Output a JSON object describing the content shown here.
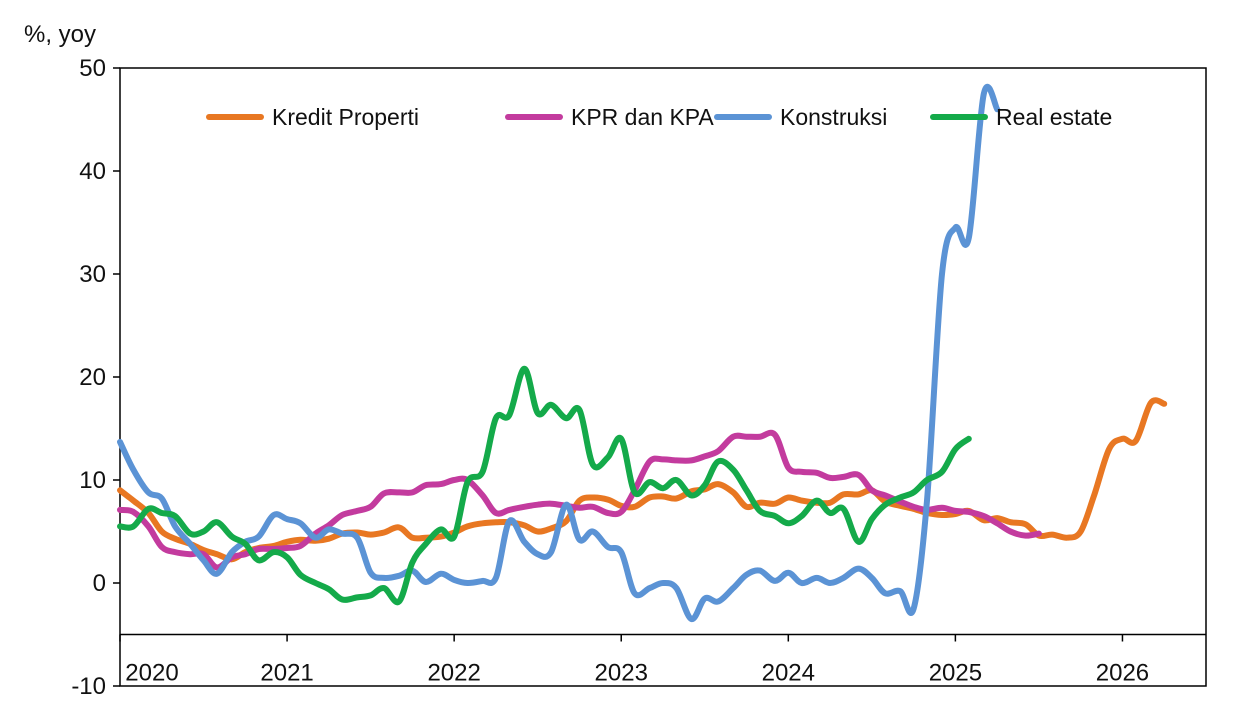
{
  "chart_data": {
    "type": "line",
    "ylabel": "%, yoy",
    "ylim": [
      -10,
      50
    ],
    "xlim": [
      2020,
      2026.5
    ],
    "yticks": [
      -10,
      0,
      10,
      20,
      30,
      40,
      50
    ],
    "yticklabels": [
      "-10",
      "0",
      "10",
      "20",
      "30",
      "40",
      "50"
    ],
    "xticks": [
      2020,
      2021,
      2022,
      2023,
      2024,
      2025,
      2026
    ],
    "xticklabels": [
      "2020",
      "2021",
      "2022",
      "2023",
      "2024",
      "2025",
      "2026"
    ],
    "x_axis_crosses_at": -5,
    "grid": false,
    "legend": "top",
    "series": [
      {
        "name": "Kredit Properti",
        "color": "#E87722",
        "points": [
          [
            2020.0,
            9.0
          ],
          [
            2020.08,
            8.0
          ],
          [
            2020.17,
            6.8
          ],
          [
            2020.25,
            5.0
          ],
          [
            2020.33,
            4.3
          ],
          [
            2020.42,
            3.8
          ],
          [
            2020.5,
            3.2
          ],
          [
            2020.58,
            2.8
          ],
          [
            2020.67,
            2.3
          ],
          [
            2020.75,
            3.0
          ],
          [
            2020.83,
            3.4
          ],
          [
            2020.92,
            3.6
          ],
          [
            2021.0,
            4.0
          ],
          [
            2021.08,
            4.2
          ],
          [
            2021.17,
            4.1
          ],
          [
            2021.25,
            4.3
          ],
          [
            2021.33,
            4.8
          ],
          [
            2021.42,
            4.9
          ],
          [
            2021.5,
            4.7
          ],
          [
            2021.58,
            4.9
          ],
          [
            2021.67,
            5.4
          ],
          [
            2021.75,
            4.4
          ],
          [
            2021.83,
            4.4
          ],
          [
            2021.92,
            4.5
          ],
          [
            2022.0,
            4.9
          ],
          [
            2022.08,
            5.5
          ],
          [
            2022.17,
            5.8
          ],
          [
            2022.25,
            5.9
          ],
          [
            2022.33,
            5.9
          ],
          [
            2022.42,
            5.6
          ],
          [
            2022.5,
            5.0
          ],
          [
            2022.58,
            5.3
          ],
          [
            2022.67,
            6.0
          ],
          [
            2022.75,
            8.0
          ],
          [
            2022.83,
            8.3
          ],
          [
            2022.92,
            8.1
          ],
          [
            2023.0,
            7.5
          ],
          [
            2023.08,
            7.4
          ],
          [
            2023.17,
            8.3
          ],
          [
            2023.25,
            8.4
          ],
          [
            2023.33,
            8.2
          ],
          [
            2023.42,
            8.9
          ],
          [
            2023.5,
            9.1
          ],
          [
            2023.58,
            9.6
          ],
          [
            2023.67,
            8.8
          ],
          [
            2023.75,
            7.4
          ],
          [
            2023.83,
            7.8
          ],
          [
            2023.92,
            7.7
          ],
          [
            2024.0,
            8.3
          ],
          [
            2024.08,
            8.0
          ],
          [
            2024.17,
            7.8
          ],
          [
            2024.25,
            7.8
          ],
          [
            2024.33,
            8.6
          ],
          [
            2024.42,
            8.6
          ],
          [
            2024.5,
            9.0
          ],
          [
            2024.58,
            7.9
          ],
          [
            2024.67,
            7.5
          ],
          [
            2024.75,
            7.2
          ],
          [
            2024.83,
            6.8
          ],
          [
            2024.92,
            6.6
          ],
          [
            2025.0,
            6.7
          ],
          [
            2025.08,
            7.0
          ],
          [
            2025.17,
            6.1
          ],
          [
            2025.25,
            6.3
          ],
          [
            2025.33,
            5.9
          ],
          [
            2025.42,
            5.7
          ],
          [
            2025.5,
            4.6
          ],
          [
            2025.58,
            4.7
          ],
          [
            2025.67,
            4.4
          ],
          [
            2025.75,
            5.0
          ],
          [
            2025.83,
            8.5
          ],
          [
            2025.92,
            13.0
          ],
          [
            2026.0,
            14.0
          ],
          [
            2026.08,
            13.8
          ],
          [
            2026.17,
            17.5
          ],
          [
            2026.25,
            17.4
          ]
        ]
      },
      {
        "name": "KPR dan KPA",
        "color": "#C33B9E",
        "points": [
          [
            2020.0,
            7.1
          ],
          [
            2020.08,
            6.9
          ],
          [
            2020.17,
            5.5
          ],
          [
            2020.25,
            3.5
          ],
          [
            2020.33,
            3.0
          ],
          [
            2020.42,
            2.8
          ],
          [
            2020.5,
            2.8
          ],
          [
            2020.58,
            1.5
          ],
          [
            2020.67,
            2.5
          ],
          [
            2020.75,
            2.8
          ],
          [
            2020.83,
            3.3
          ],
          [
            2020.92,
            3.3
          ],
          [
            2021.0,
            3.4
          ],
          [
            2021.08,
            3.6
          ],
          [
            2021.17,
            4.8
          ],
          [
            2021.25,
            5.6
          ],
          [
            2021.33,
            6.6
          ],
          [
            2021.42,
            7.0
          ],
          [
            2021.5,
            7.4
          ],
          [
            2021.58,
            8.7
          ],
          [
            2021.67,
            8.8
          ],
          [
            2021.75,
            8.8
          ],
          [
            2021.83,
            9.5
          ],
          [
            2021.92,
            9.6
          ],
          [
            2022.0,
            10.0
          ],
          [
            2022.08,
            10.0
          ],
          [
            2022.17,
            8.5
          ],
          [
            2022.25,
            6.8
          ],
          [
            2022.33,
            7.1
          ],
          [
            2022.42,
            7.4
          ],
          [
            2022.5,
            7.6
          ],
          [
            2022.58,
            7.7
          ],
          [
            2022.67,
            7.5
          ],
          [
            2022.75,
            7.3
          ],
          [
            2022.83,
            7.4
          ],
          [
            2022.92,
            6.8
          ],
          [
            2023.0,
            6.9
          ],
          [
            2023.08,
            9.0
          ],
          [
            2023.17,
            11.8
          ],
          [
            2023.25,
            12.0
          ],
          [
            2023.33,
            11.9
          ],
          [
            2023.42,
            11.9
          ],
          [
            2023.5,
            12.3
          ],
          [
            2023.58,
            12.8
          ],
          [
            2023.67,
            14.2
          ],
          [
            2023.75,
            14.2
          ],
          [
            2023.83,
            14.2
          ],
          [
            2023.92,
            14.4
          ],
          [
            2024.0,
            11.2
          ],
          [
            2024.08,
            10.8
          ],
          [
            2024.17,
            10.7
          ],
          [
            2024.25,
            10.2
          ],
          [
            2024.33,
            10.3
          ],
          [
            2024.42,
            10.5
          ],
          [
            2024.5,
            9.0
          ],
          [
            2024.58,
            8.5
          ],
          [
            2024.67,
            7.9
          ],
          [
            2024.75,
            7.4
          ],
          [
            2024.83,
            7.1
          ],
          [
            2024.92,
            7.3
          ],
          [
            2025.0,
            7.0
          ],
          [
            2025.08,
            6.9
          ],
          [
            2025.17,
            6.5
          ],
          [
            2025.25,
            5.8
          ],
          [
            2025.33,
            5.0
          ],
          [
            2025.42,
            4.6
          ],
          [
            2025.5,
            4.8
          ]
        ]
      },
      {
        "name": "Konstruksi",
        "color": "#5B93D5",
        "points": [
          [
            2020.0,
            13.7
          ],
          [
            2020.08,
            11.0
          ],
          [
            2020.17,
            8.8
          ],
          [
            2020.25,
            8.2
          ],
          [
            2020.33,
            5.5
          ],
          [
            2020.42,
            3.8
          ],
          [
            2020.5,
            2.2
          ],
          [
            2020.58,
            0.9
          ],
          [
            2020.67,
            3.0
          ],
          [
            2020.75,
            4.0
          ],
          [
            2020.83,
            4.5
          ],
          [
            2020.92,
            6.6
          ],
          [
            2021.0,
            6.2
          ],
          [
            2021.08,
            5.8
          ],
          [
            2021.17,
            4.4
          ],
          [
            2021.25,
            5.2
          ],
          [
            2021.33,
            4.8
          ],
          [
            2021.42,
            4.4
          ],
          [
            2021.5,
            1.0
          ],
          [
            2021.58,
            0.5
          ],
          [
            2021.67,
            0.7
          ],
          [
            2021.75,
            1.2
          ],
          [
            2021.83,
            0.1
          ],
          [
            2021.92,
            0.9
          ],
          [
            2022.0,
            0.3
          ],
          [
            2022.08,
            0.0
          ],
          [
            2022.17,
            0.2
          ],
          [
            2022.25,
            0.5
          ],
          [
            2022.33,
            6.0
          ],
          [
            2022.42,
            4.0
          ],
          [
            2022.5,
            2.8
          ],
          [
            2022.58,
            3.0
          ],
          [
            2022.67,
            7.6
          ],
          [
            2022.75,
            4.2
          ],
          [
            2022.83,
            5.0
          ],
          [
            2022.92,
            3.5
          ],
          [
            2023.0,
            3.0
          ],
          [
            2023.08,
            -1.0
          ],
          [
            2023.17,
            -0.5
          ],
          [
            2023.25,
            0.0
          ],
          [
            2023.33,
            -0.5
          ],
          [
            2023.42,
            -3.5
          ],
          [
            2023.5,
            -1.5
          ],
          [
            2023.58,
            -1.8
          ],
          [
            2023.67,
            -0.5
          ],
          [
            2023.75,
            0.8
          ],
          [
            2023.83,
            1.2
          ],
          [
            2023.92,
            0.2
          ],
          [
            2024.0,
            1.0
          ],
          [
            2024.08,
            0.0
          ],
          [
            2024.17,
            0.5
          ],
          [
            2024.25,
            0.0
          ],
          [
            2024.33,
            0.5
          ],
          [
            2024.42,
            1.4
          ],
          [
            2024.5,
            0.5
          ],
          [
            2024.58,
            -1.0
          ],
          [
            2024.67,
            -0.8
          ],
          [
            2024.75,
            -2.5
          ],
          [
            2024.83,
            8.0
          ],
          [
            2024.92,
            30.0
          ],
          [
            2025.0,
            34.5
          ],
          [
            2025.08,
            33.5
          ],
          [
            2025.17,
            47.5
          ],
          [
            2025.25,
            46.0
          ]
        ]
      },
      {
        "name": "Real estate",
        "color": "#14AA4A",
        "points": [
          [
            2020.0,
            5.5
          ],
          [
            2020.08,
            5.5
          ],
          [
            2020.17,
            7.2
          ],
          [
            2020.25,
            6.8
          ],
          [
            2020.33,
            6.5
          ],
          [
            2020.42,
            4.8
          ],
          [
            2020.5,
            5.0
          ],
          [
            2020.58,
            5.9
          ],
          [
            2020.67,
            4.5
          ],
          [
            2020.75,
            3.8
          ],
          [
            2020.83,
            2.2
          ],
          [
            2020.92,
            3.0
          ],
          [
            2021.0,
            2.5
          ],
          [
            2021.08,
            0.8
          ],
          [
            2021.17,
            0.0
          ],
          [
            2021.25,
            -0.6
          ],
          [
            2021.33,
            -1.6
          ],
          [
            2021.42,
            -1.4
          ],
          [
            2021.5,
            -1.2
          ],
          [
            2021.58,
            -0.5
          ],
          [
            2021.67,
            -1.8
          ],
          [
            2021.75,
            2.0
          ],
          [
            2021.83,
            3.8
          ],
          [
            2021.92,
            5.2
          ],
          [
            2022.0,
            4.5
          ],
          [
            2022.08,
            9.8
          ],
          [
            2022.17,
            10.8
          ],
          [
            2022.25,
            16.0
          ],
          [
            2022.33,
            16.3
          ],
          [
            2022.42,
            20.8
          ],
          [
            2022.5,
            16.5
          ],
          [
            2022.58,
            17.3
          ],
          [
            2022.67,
            16.0
          ],
          [
            2022.75,
            16.8
          ],
          [
            2022.83,
            11.5
          ],
          [
            2022.92,
            12.2
          ],
          [
            2023.0,
            14.0
          ],
          [
            2023.08,
            8.8
          ],
          [
            2023.17,
            9.8
          ],
          [
            2023.25,
            9.2
          ],
          [
            2023.33,
            10.0
          ],
          [
            2023.42,
            8.5
          ],
          [
            2023.5,
            9.5
          ],
          [
            2023.58,
            11.8
          ],
          [
            2023.67,
            11.0
          ],
          [
            2023.75,
            9.0
          ],
          [
            2023.83,
            7.0
          ],
          [
            2023.92,
            6.5
          ],
          [
            2024.0,
            5.8
          ],
          [
            2024.08,
            6.5
          ],
          [
            2024.17,
            8.0
          ],
          [
            2024.25,
            6.8
          ],
          [
            2024.33,
            7.2
          ],
          [
            2024.42,
            4.0
          ],
          [
            2024.5,
            6.2
          ],
          [
            2024.58,
            7.6
          ],
          [
            2024.67,
            8.3
          ],
          [
            2024.75,
            8.8
          ],
          [
            2024.83,
            10.0
          ],
          [
            2024.92,
            10.8
          ],
          [
            2025.0,
            13.0
          ],
          [
            2025.08,
            14.0
          ]
        ]
      }
    ]
  }
}
